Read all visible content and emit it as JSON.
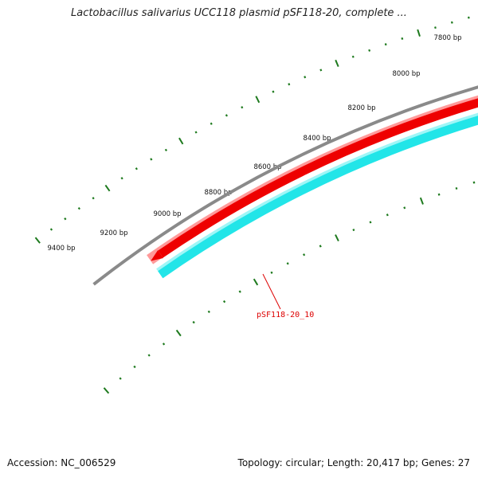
{
  "title": "Lactobacillus salivarius UCC118 plasmid pSF118-20, complete ...",
  "footer": {
    "accession": "Accession: NC_006529",
    "summary": "Topology: circular; Length: 20,417 bp; Genes: 27"
  },
  "colors": {
    "backbone": "#8a8a8a",
    "ticks": "#1e7a1e",
    "forward_feature": "#ee0000",
    "reverse_feature": "#22e5e8",
    "feature_label": "#dd0000"
  },
  "ruler_labels": [
    "7800 bp",
    "8000 bp",
    "8200 bp",
    "8400 bp",
    "8600 bp",
    "8800 bp",
    "9000 bp",
    "9200 bp",
    "9400 bp"
  ],
  "features": [
    {
      "label": "pSF118-20_10"
    }
  ]
}
